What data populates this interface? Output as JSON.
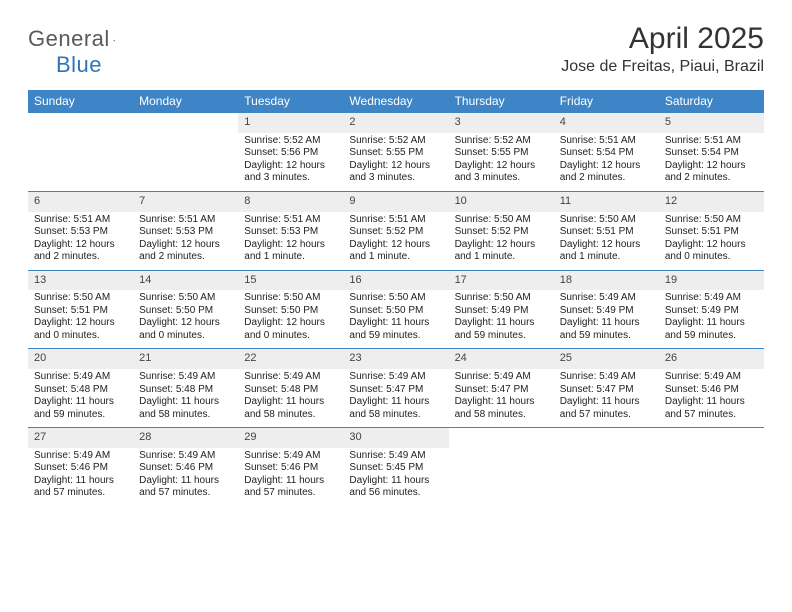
{
  "brand": {
    "part1": "General",
    "part2": "Blue",
    "tri_color": "#2f74b5"
  },
  "title": "April 2025",
  "location": "Jose de Freitas, Piaui, Brazil",
  "colors": {
    "header_bg": "#3d85c6",
    "header_fg": "#ffffff",
    "daynum_bg": "#eeeeee",
    "rule": "#3d85c6",
    "text": "#222222"
  },
  "dow": [
    "Sunday",
    "Monday",
    "Tuesday",
    "Wednesday",
    "Thursday",
    "Friday",
    "Saturday"
  ],
  "weeks": [
    [
      null,
      null,
      {
        "n": "1",
        "sr": "5:52 AM",
        "ss": "5:56 PM",
        "dl": "12 hours and 3 minutes."
      },
      {
        "n": "2",
        "sr": "5:52 AM",
        "ss": "5:55 PM",
        "dl": "12 hours and 3 minutes."
      },
      {
        "n": "3",
        "sr": "5:52 AM",
        "ss": "5:55 PM",
        "dl": "12 hours and 3 minutes."
      },
      {
        "n": "4",
        "sr": "5:51 AM",
        "ss": "5:54 PM",
        "dl": "12 hours and 2 minutes."
      },
      {
        "n": "5",
        "sr": "5:51 AM",
        "ss": "5:54 PM",
        "dl": "12 hours and 2 minutes."
      }
    ],
    [
      {
        "n": "6",
        "sr": "5:51 AM",
        "ss": "5:53 PM",
        "dl": "12 hours and 2 minutes."
      },
      {
        "n": "7",
        "sr": "5:51 AM",
        "ss": "5:53 PM",
        "dl": "12 hours and 2 minutes."
      },
      {
        "n": "8",
        "sr": "5:51 AM",
        "ss": "5:53 PM",
        "dl": "12 hours and 1 minute."
      },
      {
        "n": "9",
        "sr": "5:51 AM",
        "ss": "5:52 PM",
        "dl": "12 hours and 1 minute."
      },
      {
        "n": "10",
        "sr": "5:50 AM",
        "ss": "5:52 PM",
        "dl": "12 hours and 1 minute."
      },
      {
        "n": "11",
        "sr": "5:50 AM",
        "ss": "5:51 PM",
        "dl": "12 hours and 1 minute."
      },
      {
        "n": "12",
        "sr": "5:50 AM",
        "ss": "5:51 PM",
        "dl": "12 hours and 0 minutes."
      }
    ],
    [
      {
        "n": "13",
        "sr": "5:50 AM",
        "ss": "5:51 PM",
        "dl": "12 hours and 0 minutes."
      },
      {
        "n": "14",
        "sr": "5:50 AM",
        "ss": "5:50 PM",
        "dl": "12 hours and 0 minutes."
      },
      {
        "n": "15",
        "sr": "5:50 AM",
        "ss": "5:50 PM",
        "dl": "12 hours and 0 minutes."
      },
      {
        "n": "16",
        "sr": "5:50 AM",
        "ss": "5:50 PM",
        "dl": "11 hours and 59 minutes."
      },
      {
        "n": "17",
        "sr": "5:50 AM",
        "ss": "5:49 PM",
        "dl": "11 hours and 59 minutes."
      },
      {
        "n": "18",
        "sr": "5:49 AM",
        "ss": "5:49 PM",
        "dl": "11 hours and 59 minutes."
      },
      {
        "n": "19",
        "sr": "5:49 AM",
        "ss": "5:49 PM",
        "dl": "11 hours and 59 minutes."
      }
    ],
    [
      {
        "n": "20",
        "sr": "5:49 AM",
        "ss": "5:48 PM",
        "dl": "11 hours and 59 minutes."
      },
      {
        "n": "21",
        "sr": "5:49 AM",
        "ss": "5:48 PM",
        "dl": "11 hours and 58 minutes."
      },
      {
        "n": "22",
        "sr": "5:49 AM",
        "ss": "5:48 PM",
        "dl": "11 hours and 58 minutes."
      },
      {
        "n": "23",
        "sr": "5:49 AM",
        "ss": "5:47 PM",
        "dl": "11 hours and 58 minutes."
      },
      {
        "n": "24",
        "sr": "5:49 AM",
        "ss": "5:47 PM",
        "dl": "11 hours and 58 minutes."
      },
      {
        "n": "25",
        "sr": "5:49 AM",
        "ss": "5:47 PM",
        "dl": "11 hours and 57 minutes."
      },
      {
        "n": "26",
        "sr": "5:49 AM",
        "ss": "5:46 PM",
        "dl": "11 hours and 57 minutes."
      }
    ],
    [
      {
        "n": "27",
        "sr": "5:49 AM",
        "ss": "5:46 PM",
        "dl": "11 hours and 57 minutes."
      },
      {
        "n": "28",
        "sr": "5:49 AM",
        "ss": "5:46 PM",
        "dl": "11 hours and 57 minutes."
      },
      {
        "n": "29",
        "sr": "5:49 AM",
        "ss": "5:46 PM",
        "dl": "11 hours and 57 minutes."
      },
      {
        "n": "30",
        "sr": "5:49 AM",
        "ss": "5:45 PM",
        "dl": "11 hours and 56 minutes."
      },
      null,
      null,
      null
    ]
  ],
  "labels": {
    "sunrise": "Sunrise:",
    "sunset": "Sunset:",
    "daylight": "Daylight:"
  }
}
